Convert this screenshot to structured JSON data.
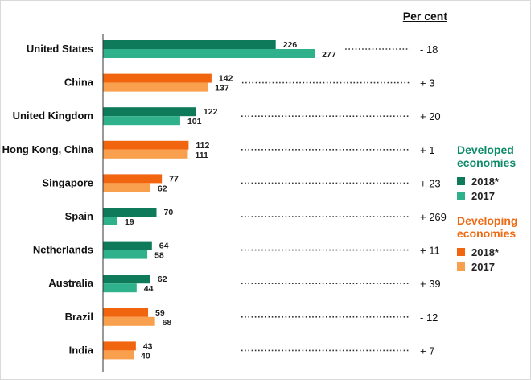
{
  "chart_data": {
    "type": "bar",
    "orientation": "horizontal",
    "unit_label": "Per cent",
    "categories": [
      "United States",
      "China",
      "United Kingdom",
      "Hong Kong, China",
      "Singapore",
      "Spain",
      "Netherlands",
      "Australia",
      "Brazil",
      "India"
    ],
    "groups": [
      "developed",
      "developing",
      "developed",
      "developing",
      "developing",
      "developed",
      "developed",
      "developed",
      "developing",
      "developing"
    ],
    "series": [
      {
        "name": "2018*",
        "values": [
          226,
          142,
          122,
          112,
          77,
          70,
          64,
          62,
          59,
          43
        ]
      },
      {
        "name": "2017",
        "values": [
          277,
          137,
          101,
          111,
          62,
          19,
          58,
          44,
          68,
          40
        ]
      }
    ],
    "change_labels": [
      "- 18",
      "+ 3",
      "+ 20",
      "+ 1",
      "+ 23",
      "+ 269",
      "+ 11",
      "+ 39",
      "- 12",
      "+ 7"
    ],
    "xlim": [
      0,
      300
    ],
    "grid": false,
    "legend_position": "right"
  },
  "legend": {
    "developed_title": "Developed economies",
    "developing_title": "Developing economies",
    "item_2018": "2018*",
    "item_2017": "2017"
  },
  "colors": {
    "developed_2018": "#0f7a5a",
    "developed_2017": "#2fb28b",
    "developing_2018": "#f2650f",
    "developing_2017": "#f9a04e",
    "developed_title": "#0e8c6a",
    "developing_title": "#ee6a12",
    "axis": "#333333",
    "dots": "#333333"
  }
}
